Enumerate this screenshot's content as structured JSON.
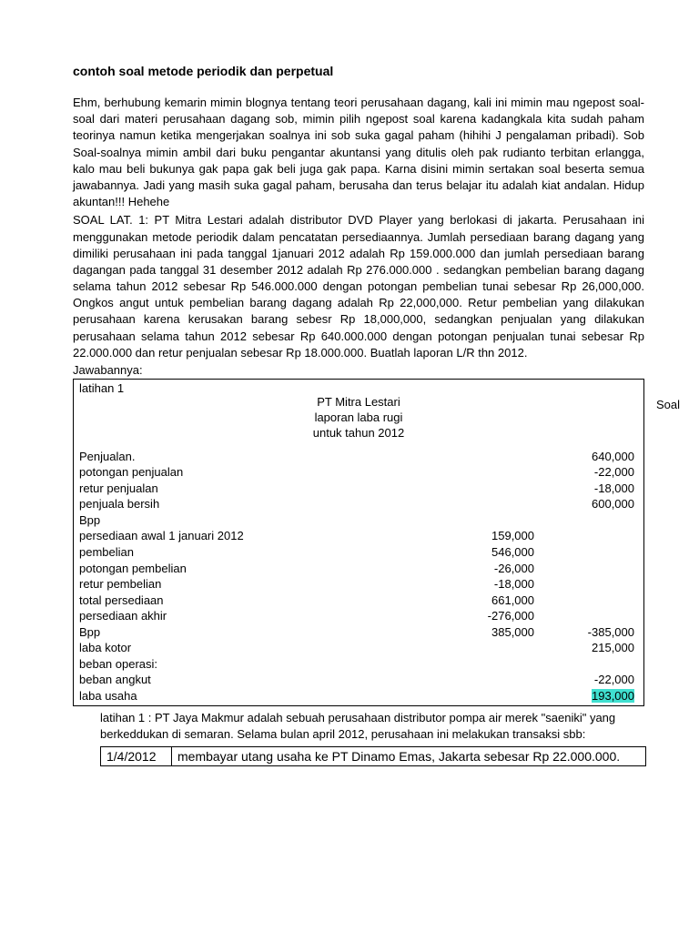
{
  "title": "contoh soal metode periodik dan perpetual",
  "intro": "Ehm, berhubung kemarin mimin blognya tentang teori perusahaan dagang, kali ini mimin mau ngepost soal-soal dari materi perusahaan dagang sob, mimin pilih ngepost soal karena kadangkala kita sudah paham teorinya namun ketika mengerjakan soalnya ini sob suka gagal paham (hihihi J pengalaman pribadi). Sob Soal-soalnya mimin ambil dari buku pengantar akuntansi yang ditulis oleh pak rudianto terbitan erlangga, kalo mau beli bukunya gak papa gak beli juga gak papa. Karna disini mimin sertakan soal beserta semua jawabannya. Jadi yang masih suka gagal paham, berusaha dan terus belajar itu adalah kiat andalan. Hidup akuntan!!! Hehehe",
  "soal": "SOAL LAT. 1: PT Mitra Lestari adalah distributor DVD Player yang berlokasi di jakarta. Perusahaan ini menggunakan metode periodik dalam pencatatan persediaannya. Jumlah persediaan barang dagang yang dimiliki perusahaan ini pada tanggal 1januari 2012 adalah Rp 159.000.000  dan jumlah persediaan barang dagangan pada tanggal 31 desember 2012 adalah Rp 276.000.000 .  sedangkan pembelian barang dagang selama tahun 2012  sebesar Rp 546.000.000 dengan potongan pembelian tunai sebesar Rp 26,000,000. Ongkos angut untuk pembelian barang dagang adalah Rp 22,000,000. Retur pembelian yang dilakukan perusahaan karena kerusakan barang sebesr Rp 18,000,000, sedangkan penjualan yang dilakukan perusahaan selama tahun 2012 sebesar Rp 640.000.000 dengan potongan penjualan tunai sebesar Rp 22.000.000 dan retur penjualan sebesar Rp 18.000.000. Buatlah laporan L/R thn 2012.",
  "answer_label": "Jawabannya:",
  "report": {
    "label_top": "latihan 1",
    "side_label": "Soal",
    "company": "PT Mitra Lestari",
    "report_name": "laporan laba rugi",
    "period": "untuk tahun 2012",
    "rows": [
      {
        "label": "Penjualan.",
        "col1": "",
        "col2": "640,000"
      },
      {
        "label": "potongan penjualan",
        "col1": "",
        "col2": "-22,000"
      },
      {
        "label": "retur penjualan",
        "col1": "",
        "col2": "-18,000"
      },
      {
        "label": "penjuala bersih",
        "col1": "",
        "col2": "600,000"
      },
      {
        "label": "Bpp",
        "col1": "",
        "col2": ""
      },
      {
        "label": "persediaan awal 1 januari 2012",
        "col1": "159,000",
        "col2": ""
      },
      {
        "label": "pembelian",
        "col1": "546,000",
        "col2": ""
      },
      {
        "label": "potongan pembelian",
        "col1": "-26,000",
        "col2": ""
      },
      {
        "label": "retur pembelian",
        "col1": "-18,000",
        "col2": ""
      },
      {
        "label": "total persediaan",
        "col1": "661,000",
        "col2": ""
      },
      {
        "label": "persediaan akhir",
        "col1": "-276,000",
        "col2": ""
      },
      {
        "label": "Bpp",
        "col1": "385,000",
        "col2": "-385,000"
      },
      {
        "label": "laba kotor",
        "col1": "",
        "col2": "215,000"
      },
      {
        "label": "beban operasi:",
        "col1": "",
        "col2": ""
      },
      {
        "label": "beban angkut",
        "col1": "",
        "col2": "-22,000"
      },
      {
        "label": "laba usaha",
        "col1": "",
        "col2": "193,000",
        "highlight": true
      }
    ]
  },
  "after": "latihan 1 : PT Jaya Makmur adalah sebuah perusahaan distributor pompa air merek \"saeniki\" yang berkeddukan di semaran. Selama bulan april 2012, perusahaan ini melakukan transaksi sbb:",
  "trans": {
    "date": "1/4/2012",
    "desc": "membayar utang usaha ke PT Dinamo Emas, Jakarta sebesar Rp 22.000.000."
  }
}
